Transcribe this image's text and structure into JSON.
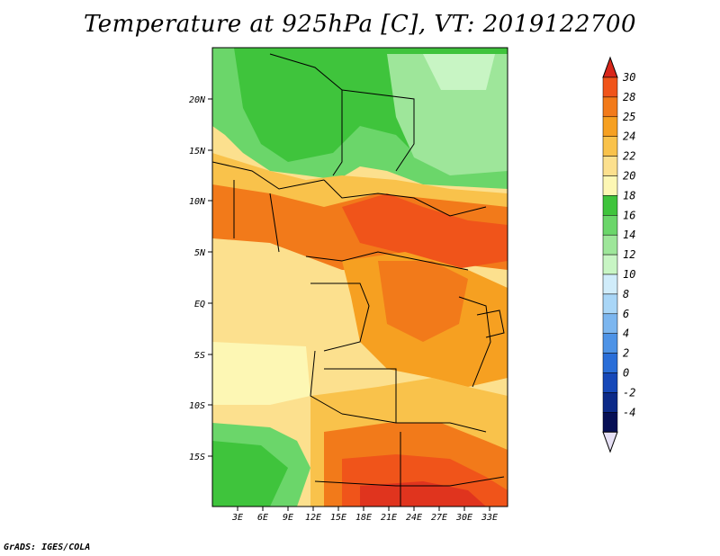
{
  "title": "Temperature at 925hPa [C], VT: 2019122700",
  "footer": "GrADS: IGES/COLA",
  "map": {
    "lat_labels": [
      "20N",
      "15N",
      "10N",
      "5N",
      "EQ",
      "5S",
      "10S",
      "15S"
    ],
    "lon_labels": [
      "3E",
      "6E",
      "9E",
      "12E",
      "15E",
      "18E",
      "21E",
      "24E",
      "27E",
      "30E",
      "33E"
    ]
  },
  "colorbar": {
    "levels": [
      "30",
      "28",
      "25",
      "24",
      "22",
      "20",
      "18",
      "16",
      "14",
      "12",
      "10",
      "8",
      "6",
      "4",
      "2",
      "0",
      "-2",
      "-4"
    ],
    "colors": [
      "#e0341e",
      "#f0541a",
      "#f27a1a",
      "#f6a021",
      "#f9c24b",
      "#fce08e",
      "#fdf7b4",
      "#3fc43c",
      "#6bd66a",
      "#9ee69a",
      "#c8f5c4",
      "#d0ecfa",
      "#a9d6f7",
      "#7cb6ef",
      "#4e93e6",
      "#2a6ed8",
      "#1648b8",
      "#0c2a88",
      "#060f55"
    ],
    "bottom_triangle": "#e6e0f5",
    "top_triangle": "#d8261a"
  }
}
